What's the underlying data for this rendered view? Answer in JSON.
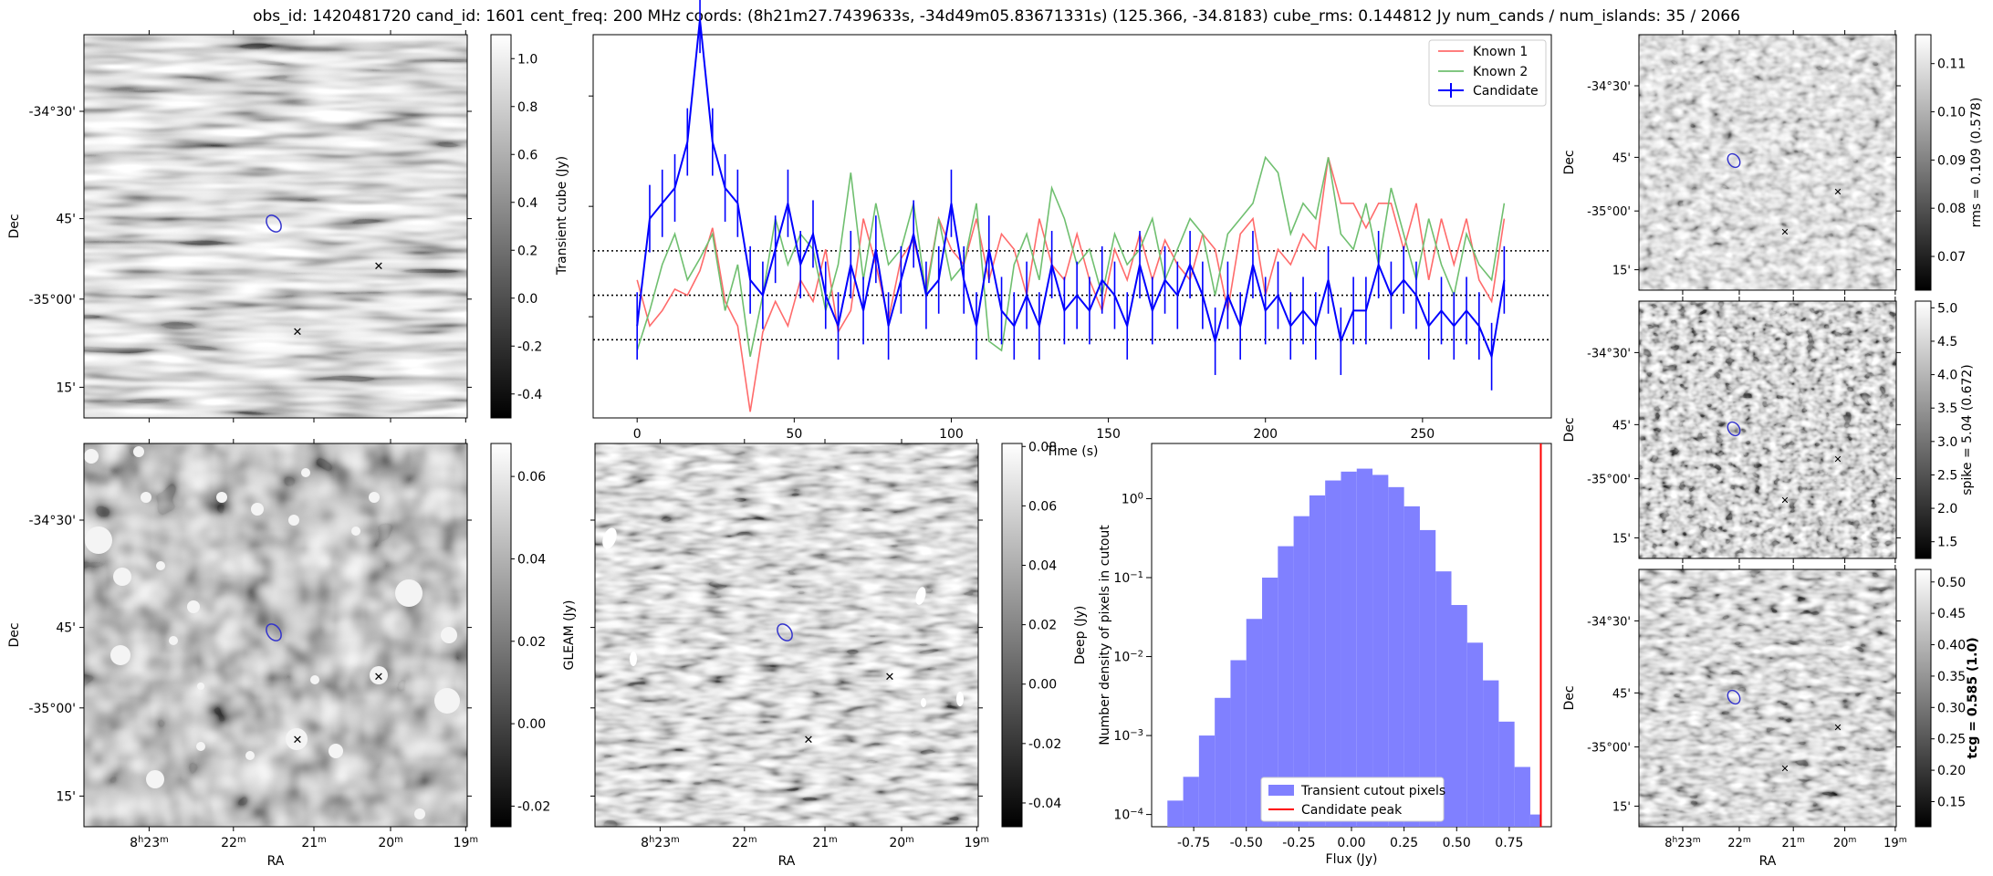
{
  "title": "obs_id: 1420481720 cand_id: 1601 cent_freq: 200 MHz coords: (8h21m27.7439633s, -34d49m05.83671331s) (125.366, -34.8183) cube_rms: 0.144812 Jy num_cands / num_islands: 35 / 2066",
  "colors": {
    "known1": "#ff6b6b",
    "known2": "#6fbf6f",
    "candidate": "#0000ff",
    "hist": "#8080ff",
    "peak": "#ff0000"
  },
  "sky": {
    "ra_ticks": [
      "8h23m",
      "22m",
      "21m",
      "20m",
      "19m"
    ],
    "dec_ticks": [
      "-34°30'",
      "45'",
      "-35°00'",
      "15'"
    ],
    "ra_label": "RA",
    "dec_label": "Dec"
  },
  "panels": {
    "transient_cube": {
      "cbar_label": "Transient cube (Jy)",
      "cbar_ticks": [
        "1.0",
        "0.8",
        "0.6",
        "0.4",
        "0.2",
        "0.0",
        "-0.2",
        "-0.4"
      ],
      "cbar_min": -0.5,
      "cbar_max": 1.1
    },
    "deep": {
      "cbar_label": "Deep (Jy)",
      "cbar_ticks": [
        "0.06",
        "0.04",
        "0.02",
        "0.00",
        "-0.02"
      ],
      "cbar_min": -0.025,
      "cbar_max": 0.068
    },
    "gleam": {
      "cbar_label": "GLEAM (Jy)",
      "cbar_ticks": [
        "0.08",
        "0.06",
        "0.04",
        "0.02",
        "0.00",
        "-0.02",
        "-0.04"
      ],
      "cbar_min": -0.048,
      "cbar_max": 0.081
    },
    "rms": {
      "cbar_label": "rms = 0.109 (0.578)",
      "cbar_ticks": [
        "0.11",
        "0.10",
        "0.09",
        "0.08",
        "0.07"
      ],
      "cbar_min": 0.063,
      "cbar_max": 0.116
    },
    "spike": {
      "cbar_label": "spike = 5.04 (0.672)",
      "cbar_ticks": [
        "5.0",
        "4.5",
        "4.0",
        "3.5",
        "3.0",
        "2.5",
        "2.0",
        "1.5"
      ],
      "cbar_min": 1.25,
      "cbar_max": 5.1
    },
    "tcg": {
      "cbar_label": "tcg = 0.585 (1.0)",
      "cbar_ticks": [
        "0.50",
        "0.45",
        "0.40",
        "0.35",
        "0.30",
        "0.25",
        "0.20",
        "0.15"
      ],
      "cbar_min": 0.11,
      "cbar_max": 0.52
    }
  },
  "chart_data": [
    {
      "type": "line",
      "name": "lightcurve",
      "xlabel": "Time (s)",
      "ylabel": "",
      "xlim": [
        -14,
        291
      ],
      "ylim": [
        -0.4,
        0.85
      ],
      "xticks": [
        0,
        50,
        100,
        150,
        200,
        250
      ],
      "hlines": [
        0.145,
        0.0,
        -0.145
      ],
      "legend": [
        "Known 1",
        "Known 2",
        "Candidate"
      ],
      "legend_position": "top-right",
      "x": [
        0,
        4,
        8,
        12,
        16,
        20,
        24,
        28,
        32,
        36,
        40,
        44,
        48,
        52,
        56,
        60,
        64,
        68,
        72,
        76,
        80,
        84,
        88,
        92,
        96,
        100,
        104,
        108,
        112,
        116,
        120,
        124,
        128,
        132,
        136,
        140,
        144,
        148,
        152,
        156,
        160,
        164,
        168,
        172,
        176,
        180,
        184,
        188,
        192,
        196,
        200,
        204,
        208,
        212,
        216,
        220,
        224,
        228,
        232,
        236,
        240,
        244,
        248,
        252,
        256,
        260,
        264,
        268,
        272,
        276
      ],
      "series": [
        {
          "name": "Known 1",
          "values": [
            0.05,
            -0.1,
            -0.05,
            0.02,
            0.0,
            0.08,
            0.22,
            -0.02,
            -0.1,
            -0.38,
            -0.12,
            -0.02,
            -0.1,
            0.05,
            -0.02,
            0.15,
            -0.12,
            -0.05,
            0.25,
            0.1,
            -0.08,
            0.12,
            0.18,
            0.02,
            0.25,
            0.15,
            0.1,
            0.25,
            0.05,
            0.2,
            0.15,
            0.0,
            0.25,
            0.1,
            0.05,
            0.2,
            0.05,
            -0.05,
            0.15,
            0.05,
            0.2,
            0.05,
            0.18,
            0.1,
            0.05,
            0.2,
            0.15,
            -0.05,
            0.2,
            0.25,
            0.0,
            0.15,
            0.1,
            0.2,
            0.15,
            0.45,
            0.3,
            0.3,
            0.22,
            0.3,
            0.3,
            0.15,
            0.3,
            0.05,
            0.25,
            0.1,
            0.25,
            0.05,
            -0.02,
            0.25
          ]
        },
        {
          "name": "Known 2",
          "values": [
            -0.18,
            -0.05,
            0.1,
            0.2,
            0.05,
            0.12,
            0.2,
            -0.05,
            0.1,
            -0.2,
            0.0,
            0.25,
            0.1,
            0.2,
            0.15,
            -0.05,
            0.1,
            0.4,
            0.05,
            0.3,
            0.1,
            0.15,
            0.3,
            0.0,
            0.25,
            0.05,
            0.1,
            0.3,
            -0.15,
            -0.18,
            0.1,
            0.2,
            0.05,
            0.35,
            0.25,
            0.1,
            0.15,
            0.0,
            0.2,
            0.1,
            0.15,
            0.25,
            0.05,
            0.15,
            0.25,
            0.2,
            0.0,
            0.2,
            0.25,
            0.3,
            0.45,
            0.4,
            0.2,
            0.3,
            0.25,
            0.45,
            0.2,
            0.15,
            0.3,
            0.1,
            0.35,
            0.2,
            0.05,
            0.25,
            0.1,
            0.0,
            0.2,
            0.1,
            0.05,
            0.3
          ]
        },
        {
          "name": "Candidate",
          "values": [
            -0.1,
            0.25,
            0.3,
            0.35,
            0.5,
            0.9,
            0.5,
            0.35,
            0.3,
            0.05,
            0.0,
            0.15,
            0.3,
            0.1,
            0.2,
            0.0,
            -0.1,
            0.1,
            -0.05,
            0.15,
            -0.1,
            0.05,
            0.2,
            0.0,
            0.05,
            0.3,
            0.05,
            -0.1,
            0.15,
            -0.05,
            -0.1,
            0.0,
            -0.1,
            0.1,
            -0.05,
            0.0,
            -0.05,
            0.05,
            0.0,
            -0.1,
            0.1,
            -0.05,
            0.05,
            0.0,
            0.1,
            0.0,
            -0.15,
            0.0,
            -0.1,
            0.1,
            -0.05,
            0.0,
            -0.1,
            -0.05,
            -0.1,
            0.05,
            -0.15,
            -0.05,
            -0.05,
            0.1,
            0.0,
            0.05,
            0.0,
            -0.1,
            -0.05,
            -0.1,
            -0.05,
            -0.1,
            -0.2,
            0.05
          ],
          "errors": [
            0.11,
            0.11,
            0.11,
            0.11,
            0.11,
            0.11,
            0.11,
            0.11,
            0.11,
            0.11,
            0.11,
            0.11,
            0.11,
            0.11,
            0.11,
            0.11,
            0.11,
            0.11,
            0.11,
            0.11,
            0.11,
            0.11,
            0.11,
            0.11,
            0.11,
            0.11,
            0.11,
            0.11,
            0.11,
            0.11,
            0.11,
            0.11,
            0.11,
            0.11,
            0.11,
            0.11,
            0.11,
            0.11,
            0.11,
            0.11,
            0.11,
            0.11,
            0.11,
            0.11,
            0.11,
            0.11,
            0.11,
            0.11,
            0.11,
            0.11,
            0.11,
            0.11,
            0.11,
            0.11,
            0.11,
            0.11,
            0.11,
            0.11,
            0.11,
            0.11,
            0.11,
            0.11,
            0.11,
            0.11,
            0.11,
            0.11,
            0.11,
            0.11,
            0.11,
            0.11
          ]
        }
      ]
    },
    {
      "type": "bar",
      "name": "histogram",
      "xlabel": "Flux (Jy)",
      "ylabel": "Number density of pixels in cutout",
      "xlim": [
        -0.95,
        0.95
      ],
      "ylog": true,
      "ylim": [
        7e-05,
        5
      ],
      "xticks": [
        "-0.75",
        "-0.50",
        "-0.25",
        "0.00",
        "0.25",
        "0.50",
        "0.75"
      ],
      "yticks": [
        "10^0",
        "10^-1",
        "10^-2",
        "10^-3",
        "10^-4"
      ],
      "bin_edges": [
        -0.875,
        -0.8,
        -0.725,
        -0.65,
        -0.575,
        -0.5,
        -0.425,
        -0.35,
        -0.275,
        -0.2,
        -0.125,
        -0.05,
        0.025,
        0.1,
        0.175,
        0.25,
        0.325,
        0.4,
        0.475,
        0.55,
        0.625,
        0.7,
        0.775,
        0.85,
        0.9
      ],
      "values": [
        0.00015,
        0.0003,
        0.001,
        0.003,
        0.009,
        0.03,
        0.1,
        0.25,
        0.6,
        1.1,
        1.7,
        2.2,
        2.4,
        2.0,
        1.4,
        0.8,
        0.4,
        0.12,
        0.045,
        0.015,
        0.005,
        0.0015,
        0.0004,
        0.0001
      ],
      "candidate_peak": 0.9,
      "legend": [
        "Transient cutout pixels",
        "Candidate peak"
      ],
      "legend_position": "bottom-center"
    }
  ]
}
